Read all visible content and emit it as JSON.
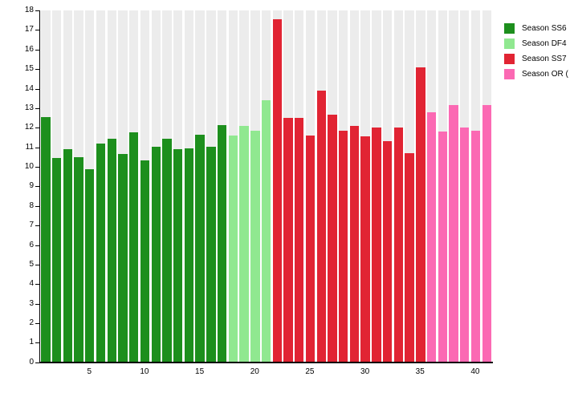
{
  "colors": {
    "background": "#ffffff",
    "stripe": "#ececec",
    "axis": "#000000",
    "series_ss6": "#1d8f1d",
    "series_df4": "#90e890",
    "series_ss7": "#e12433",
    "series_or": "#fb69b3"
  },
  "chart_data": {
    "type": "bar",
    "title": "",
    "xlabel": "",
    "ylabel": "",
    "ylim": [
      0,
      18
    ],
    "yticks": [
      0,
      1,
      2,
      3,
      4,
      5,
      6,
      7,
      8,
      9,
      10,
      11,
      12,
      13,
      14,
      15,
      16,
      17,
      18
    ],
    "xticks": [
      5,
      10,
      15,
      20,
      25,
      30,
      35,
      40
    ],
    "x_range": [
      1,
      41
    ],
    "grid": "vertical-stripes",
    "legend_position": "right-top",
    "series": [
      {
        "name": "Season SS6",
        "color": "#1d8f1d",
        "x_start": 1,
        "values": [
          12.55,
          10.45,
          10.9,
          10.5,
          9.9,
          11.2,
          11.45,
          10.65,
          11.75,
          10.35,
          11.05,
          11.45,
          10.9,
          10.95,
          11.65,
          11.05,
          12.15
        ]
      },
      {
        "name": "Season DF4",
        "color": "#90e890",
        "x_start": 18,
        "values": [
          11.6,
          12.1,
          11.85,
          13.4
        ]
      },
      {
        "name": "Season SS7",
        "color": "#e12433",
        "x_start": 22,
        "values": [
          17.55,
          12.5,
          12.5,
          11.6,
          13.9,
          12.65,
          11.85,
          12.1,
          11.55,
          12.0,
          11.3,
          12.0,
          10.7,
          15.1
        ]
      },
      {
        "name": "Season OR (",
        "color": "#fb69b3",
        "x_start": 36,
        "values": [
          12.8,
          11.8,
          13.15,
          12.0,
          11.85,
          13.15
        ]
      }
    ]
  }
}
